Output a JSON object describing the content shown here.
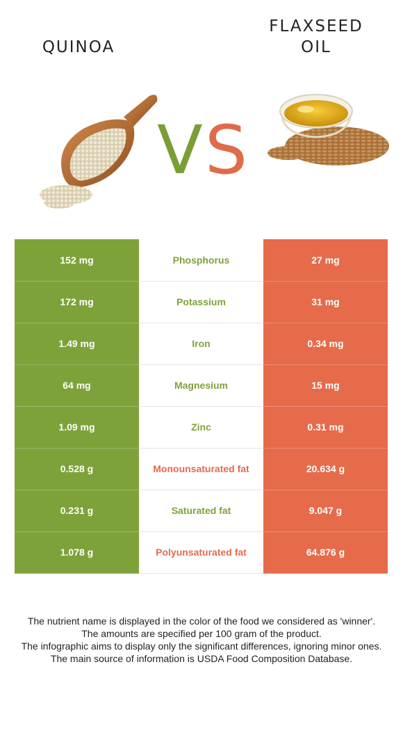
{
  "header": {
    "left_food": "QUINOA",
    "right_food_line1": "FLAXSEED",
    "right_food_line2": "OIL",
    "vs_v": "V",
    "vs_s": "S"
  },
  "colors": {
    "left_food": "#7ea23a",
    "right_food": "#e56b4b"
  },
  "images": {
    "left": "quinoa-scoop-illustration",
    "right": "flaxseed-oil-bowl-illustration"
  },
  "rows": [
    {
      "nutrient": "Phosphorus",
      "left": "152 mg",
      "right": "27 mg",
      "winner": "left"
    },
    {
      "nutrient": "Potassium",
      "left": "172 mg",
      "right": "31 mg",
      "winner": "left"
    },
    {
      "nutrient": "Iron",
      "left": "1.49 mg",
      "right": "0.34 mg",
      "winner": "left"
    },
    {
      "nutrient": "Magnesium",
      "left": "64 mg",
      "right": "15 mg",
      "winner": "left"
    },
    {
      "nutrient": "Zinc",
      "left": "1.09 mg",
      "right": "0.31 mg",
      "winner": "left"
    },
    {
      "nutrient": "Monounsaturated fat",
      "left": "0.528 g",
      "right": "20.634 g",
      "winner": "right"
    },
    {
      "nutrient": "Saturated fat",
      "left": "0.231 g",
      "right": "9.047 g",
      "winner": "left"
    },
    {
      "nutrient": "Polyunsaturated fat",
      "left": "1.078 g",
      "right": "64.876 g",
      "winner": "right"
    }
  ],
  "footnote": {
    "line1": "The nutrient name is displayed in the color of the food we considered as 'winner'.",
    "line2": "The amounts are specified per 100 gram of the product.",
    "line3": "The infographic aims to display only the significant differences, ignoring minor ones.",
    "line4": "The main source of information is USDA Food Composition Database."
  }
}
